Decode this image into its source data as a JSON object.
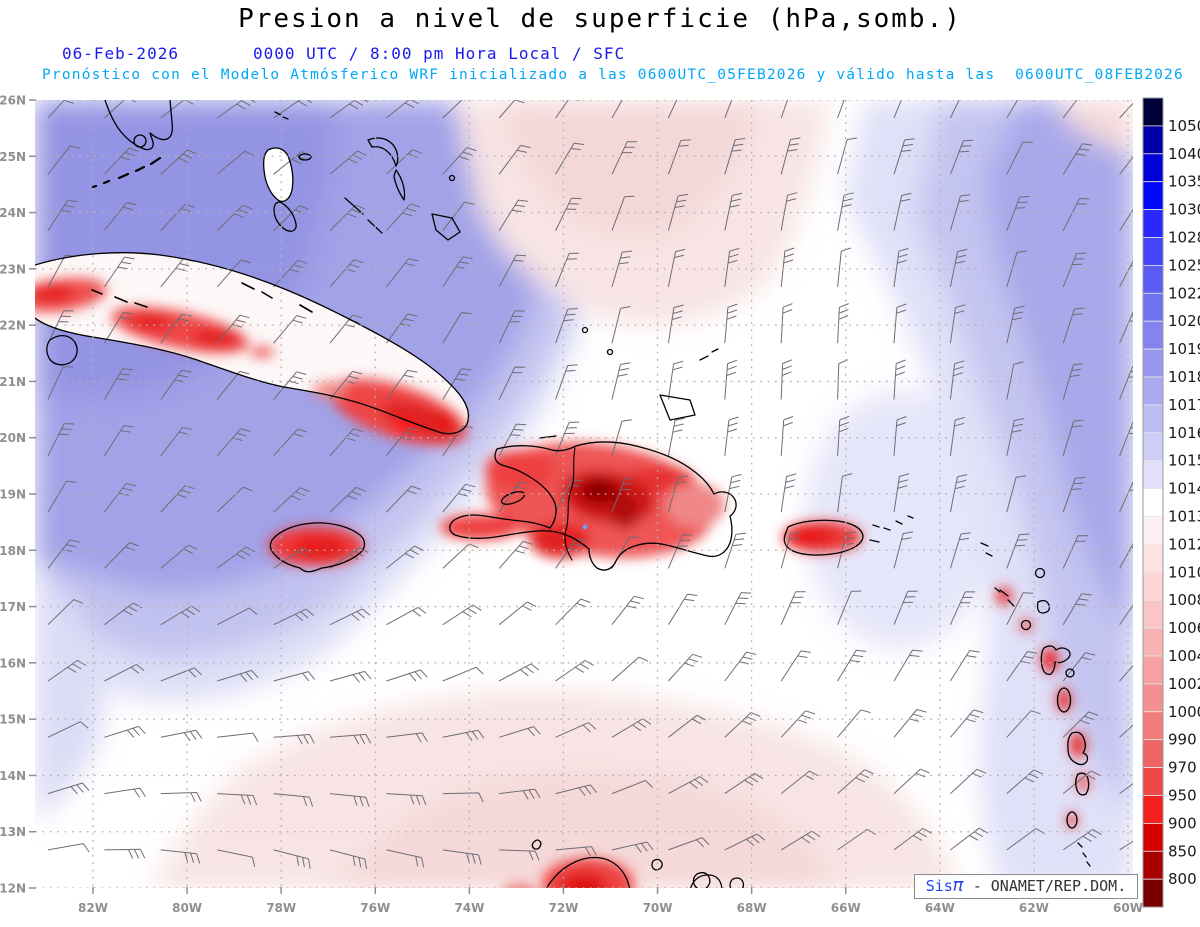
{
  "header": {
    "title": "Presion a nivel de superficie (hPa,somb.)",
    "date": "06-Feb-2026",
    "time_line": "0000 UTC / 8:00 pm Hora Local / SFC",
    "forecast_line": "Pronóstico con el Modelo Atmósferico WRF inicializado a las 0600UTC_05FEB2026 y válido hasta las  0600UTC_08FEB2026"
  },
  "axes": {
    "lat_labels": [
      "26N",
      "25N",
      "24N",
      "23N",
      "22N",
      "21N",
      "20N",
      "19N",
      "18N",
      "17N",
      "16N",
      "15N",
      "14N",
      "13N",
      "12N"
    ],
    "lon_labels": [
      "82W",
      "80W",
      "78W",
      "76W",
      "74W",
      "72W",
      "70W",
      "68W",
      "66W",
      "64W",
      "62W",
      "60W"
    ],
    "label_color": "#8f8f8f",
    "grid_color": "#b4b2b0"
  },
  "colorbar": {
    "labels": [
      "1050",
      "1040",
      "1035",
      "1030",
      "1028",
      "1025",
      "1022",
      "1020",
      "1019",
      "1018",
      "1017",
      "1016",
      "1015",
      "1014",
      "1013",
      "1012",
      "1010",
      "1008",
      "1006",
      "1004",
      "1002",
      "1000",
      "990",
      "970",
      "950",
      "900",
      "850",
      "800"
    ],
    "cell_colors": [
      "#000038",
      "#0000a8",
      "#0000d8",
      "#0008ff",
      "#2828ff",
      "#4545fa",
      "#5c5cf6",
      "#7070f2",
      "#8484ee",
      "#9898ec",
      "#aaaaee",
      "#bcbcf2",
      "#cdcdf5",
      "#e0e0fa",
      "#ffffff",
      "#fdf0f0",
      "#fce2e2",
      "#fbd4d4",
      "#fac5c5",
      "#f8b4b4",
      "#f6a2a2",
      "#f49090",
      "#f27c7c",
      "#ef6464",
      "#ec4848",
      "#f42020",
      "#d40000",
      "#a80000",
      "#780000"
    ]
  },
  "branding": {
    "prefix": "Sis",
    "pi": "π",
    "suffix": " - ONAMET/REP.DOM."
  },
  "wind": {
    "color": "#6d6d76",
    "spacing_x": 56.4,
    "spacing_y": 56.3,
    "shaft_length": 36
  },
  "chart_data": {
    "type": "heatmap",
    "title": "Presion a nivel de superficie (hPa,somb.)",
    "valid_datetime": "06-Feb-2026 0000 UTC / 8:00 pm Hora Local / SFC",
    "model_note": "Pronóstico con el Modelo Atmósferico WRF inicializado a las 0600UTC_05FEB2026 y válido hasta las 0600UTC_08FEB2026",
    "units": "hPa",
    "lat_range_n": [
      12,
      26
    ],
    "lon_range_w": [
      83,
      60
    ],
    "scale_levels_hpa": [
      800,
      850,
      900,
      950,
      970,
      990,
      1000,
      1002,
      1004,
      1006,
      1008,
      1010,
      1012,
      1013,
      1014,
      1015,
      1016,
      1017,
      1018,
      1019,
      1020,
      1022,
      1025,
      1028,
      1030,
      1035,
      1040,
      1050
    ],
    "field_summary": [
      {
        "region": "northwest quadrant (Gulf / Florida Straits / NW Caribbean)",
        "pressure_hpa": "1016-1018 (periwinkle blue)"
      },
      {
        "region": "eastern Atlantic right edge",
        "pressure_hpa": "1016-1019 (blue bands darkening eastward)"
      },
      {
        "region": "central diagonal band Bahamas-Caribbean",
        "pressure_hpa": "1013-1014 (white)"
      },
      {
        "region": "top-center Atlantic and south-central Caribbean",
        "pressure_hpa": "1012-1013 (pale pink)"
      },
      {
        "region": "heat lows over Cuba, Jamaica, Hispaniola, Puerto Rico, Lesser Antilles, Guajira",
        "pressure_hpa": "990-1008 (reds)"
      },
      {
        "region": "interior Hispaniola minima",
        "pressure_hpa": "< 970 (dark red)"
      }
    ],
    "overlays": [
      "wind barbs (gray)",
      "coastlines (black)",
      "1° lat / 2° lon dotted graticule"
    ]
  }
}
